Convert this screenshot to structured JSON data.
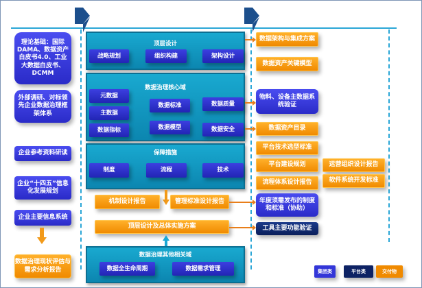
{
  "left": [
    "理论基础：国际DAMA、数据资产白皮书4.0、工业大数据白皮书、DCMM",
    "外部调研、对标领先企业数据治理框架体系",
    "企业参考资料研读",
    "企业“十四五”信息化发展规划",
    "企业主要信息系统",
    "数据治理现状评估与需求分析报告"
  ],
  "panels": {
    "top": {
      "title": "顶层设计",
      "items": [
        "战略规划",
        "组织构建",
        "架构设计"
      ]
    },
    "core": {
      "title": "数据治理核心域",
      "items": [
        "元数据",
        "主数据",
        "数据指标",
        "数据标准",
        "数据模型",
        "数据质量",
        "数据安全"
      ]
    },
    "guarantee": {
      "title": "保障措施",
      "items": [
        "制度",
        "流程",
        "技术"
      ]
    },
    "other": {
      "title": "数据治理其他相关域",
      "items": [
        "数据全生命周期",
        "数据需求管理"
      ]
    }
  },
  "middle": [
    "机制设计报告",
    "管理标准设计报告",
    "顶层设计及总体实施方案"
  ],
  "right": [
    "数据架构与集成方案",
    "数据资产关键模型",
    "物料、设备主数据系统验证",
    "数据资产目录",
    "平台技术选型标准",
    "平台建设规划",
    "流程体系设计报告",
    "年度须需发布的制度和标准（协助）",
    "工具主要功能验证",
    "运营组织设计报告",
    "软件系统开发标准"
  ],
  "legend": [
    {
      "label": "集团类",
      "color": "#3336d8"
    },
    {
      "label": "平台类",
      "color": "#0d2264"
    },
    {
      "label": "交付物",
      "color": "#f08a00"
    }
  ]
}
